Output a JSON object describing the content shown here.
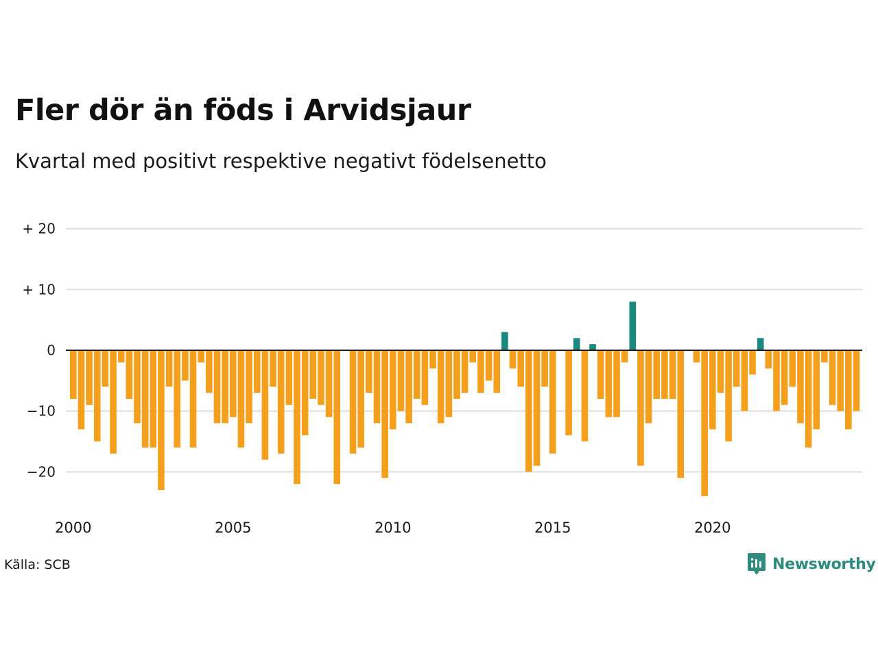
{
  "colors": {
    "negative": "#f5a01d",
    "positive": "#1a8a80",
    "grid": "#dddddd",
    "zero_line": "#1a1a1a",
    "brand": "#2e8b7d"
  },
  "source_label": "Källa: SCB",
  "brand": {
    "name": "Newsworthy",
    "icon": "newsworthy-logo-icon"
  },
  "chart_data": {
    "type": "bar",
    "title": "Fler dör än föds i Arvidsjaur",
    "subtitle": "Kvartal med positivt respektive negativt födelsenetto",
    "xlabel": "",
    "ylabel": "",
    "ylim": [
      -26,
      20
    ],
    "grid": true,
    "y_ticks": [
      {
        "value": 20,
        "label": "+ 20"
      },
      {
        "value": 10,
        "label": "+ 10"
      },
      {
        "value": 0,
        "label": "0"
      },
      {
        "value": -10,
        "label": "−10"
      },
      {
        "value": -20,
        "label": "−20"
      }
    ],
    "x_ticks": [
      {
        "year": 2000,
        "label": "2000"
      },
      {
        "year": 2005,
        "label": "2005"
      },
      {
        "year": 2010,
        "label": "2010"
      },
      {
        "year": 2015,
        "label": "2015"
      },
      {
        "year": 2020,
        "label": "2020"
      }
    ],
    "start": "2000 Q1",
    "frequency": "quarterly",
    "values": [
      -8,
      -13,
      -9,
      -15,
      -6,
      -17,
      -2,
      -8,
      -12,
      -16,
      -16,
      -23,
      -6,
      -16,
      -5,
      -16,
      -2,
      -7,
      -12,
      -12,
      -11,
      -16,
      -12,
      -7,
      -18,
      -6,
      -17,
      -9,
      -22,
      -14,
      -8,
      -9,
      -11,
      -22,
      0,
      -17,
      -16,
      -7,
      -12,
      -21,
      -13,
      -10,
      -12,
      -8,
      -9,
      -3,
      -12,
      -11,
      -8,
      -7,
      -2,
      -7,
      -5,
      -7,
      3,
      -3,
      -6,
      -20,
      -19,
      -6,
      -17,
      0,
      -14,
      2,
      -15,
      1,
      -8,
      -11,
      -11,
      -2,
      8,
      -19,
      -12,
      -8,
      -8,
      -8,
      -21,
      0,
      -2,
      -24,
      -13,
      -7,
      -15,
      -6,
      -10,
      -4,
      2,
      -3,
      -10,
      -9,
      -6,
      -12,
      -16,
      -13,
      -2,
      -9,
      -10,
      -13,
      -10
    ]
  }
}
